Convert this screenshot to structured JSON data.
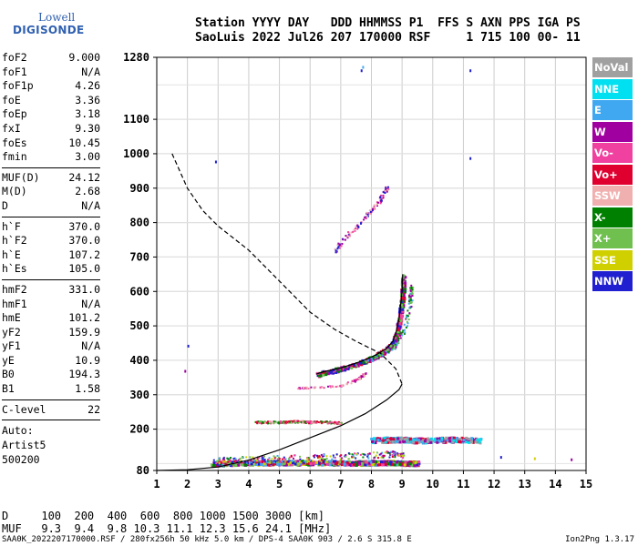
{
  "logo": {
    "line1": "Lowell",
    "line2": "DIGISONDE"
  },
  "header": {
    "line1": "Station YYYY DAY   DDD HHMMSS P1  FFS S AXN PPS IGA PS",
    "line2": "SaoLuis 2022 Jul26 207 170000 RSF     1 715 100 00- 11"
  },
  "params": [
    {
      "name": "foF2",
      "value": "9.000"
    },
    {
      "name": "foF1",
      "value": "N/A"
    },
    {
      "name": "foF1p",
      "value": "4.26"
    },
    {
      "name": "foE",
      "value": "3.36"
    },
    {
      "name": "foEp",
      "value": "3.18"
    },
    {
      "name": "fxI",
      "value": "9.30"
    },
    {
      "name": "foEs",
      "value": "10.45"
    },
    {
      "name": "fmin",
      "value": "3.00"
    },
    {
      "sep": true
    },
    {
      "name": "MUF(D)",
      "value": "24.12"
    },
    {
      "name": "M(D)",
      "value": "2.68"
    },
    {
      "name": "D",
      "value": "N/A"
    },
    {
      "sep": true
    },
    {
      "name": "h`F",
      "value": "370.0"
    },
    {
      "name": "h`F2",
      "value": "370.0"
    },
    {
      "name": "h`E",
      "value": "107.2"
    },
    {
      "name": "h`Es",
      "value": "105.0"
    },
    {
      "sep": true
    },
    {
      "name": "hmF2",
      "value": "331.0"
    },
    {
      "name": "hmF1",
      "value": "N/A"
    },
    {
      "name": "hmE",
      "value": "101.2"
    },
    {
      "name": "yF2",
      "value": "159.9"
    },
    {
      "name": "yF1",
      "value": "N/A"
    },
    {
      "name": "yE",
      "value": "10.9"
    },
    {
      "name": "B0",
      "value": "194.3"
    },
    {
      "name": "B1",
      "value": "1.58"
    },
    {
      "sep": true
    },
    {
      "name": "C-level",
      "value": "22"
    },
    {
      "sep": true
    },
    {
      "text": "Auto:"
    },
    {
      "text": "Artist5"
    },
    {
      "text": "500200"
    }
  ],
  "legend": [
    {
      "label": "NoVal",
      "color": "#a0a0a0"
    },
    {
      "label": "NNE",
      "color": "#00e0f0"
    },
    {
      "label": "E",
      "color": "#40a8f0"
    },
    {
      "label": "W",
      "color": "#a000a0"
    },
    {
      "label": "Vo-",
      "color": "#f040a0"
    },
    {
      "label": "Vo+",
      "color": "#e00030"
    },
    {
      "label": "SSW",
      "color": "#f0b0b0"
    },
    {
      "label": "X-",
      "color": "#008000"
    },
    {
      "label": "X+",
      "color": "#70c050"
    },
    {
      "label": "SSE",
      "color": "#d0d000"
    },
    {
      "label": "NNW",
      "color": "#2020d0"
    }
  ],
  "muf_table": {
    "line1": "D     100  200  400  600  800 1000 1500 3000 [km]",
    "line2": "MUF   9.3  9.4  9.8 10.3 11.1 12.3 15.6 24.1 [MHz]"
  },
  "footer": "SAA0K_2022207170000.RSF / 280fx256h 50 kHz 5.0 km / DPS-4 SAA0K 903 / 2.6 S 315.8 E",
  "version": "Ion2Png 1.3.17",
  "chart_data": {
    "type": "scatter",
    "title": "",
    "xlabel": "",
    "ylabel": "",
    "xlim": [
      1,
      15
    ],
    "ylim": [
      80,
      1280
    ],
    "x_ticks": [
      1,
      2,
      3,
      4,
      5,
      6,
      7,
      8,
      9,
      10,
      11,
      12,
      13,
      14,
      15
    ],
    "y_ticks": [
      80,
      200,
      300,
      400,
      500,
      600,
      700,
      800,
      900,
      1000,
      1100,
      1280
    ],
    "grid": true,
    "profile_solid": [
      [
        1.0,
        80
      ],
      [
        2.0,
        82
      ],
      [
        3.0,
        90
      ],
      [
        4.0,
        110
      ],
      [
        5.0,
        140
      ],
      [
        6.0,
        175
      ],
      [
        7.0,
        210
      ],
      [
        7.8,
        245
      ],
      [
        8.5,
        285
      ],
      [
        8.9,
        315
      ],
      [
        9.0,
        331
      ]
    ],
    "profile_dashed": [
      [
        1.5,
        1000
      ],
      [
        2.0,
        900
      ],
      [
        2.5,
        835
      ],
      [
        3.0,
        790
      ],
      [
        4.0,
        720
      ],
      [
        5.0,
        630
      ],
      [
        6.0,
        540
      ],
      [
        6.8,
        490
      ],
      [
        7.5,
        455
      ],
      [
        8.3,
        420
      ],
      [
        8.8,
        375
      ],
      [
        9.0,
        331
      ]
    ],
    "trace_F2_ox": [
      [
        6.2,
        360
      ],
      [
        6.5,
        368
      ],
      [
        7.0,
        378
      ],
      [
        7.5,
        392
      ],
      [
        7.9,
        405
      ],
      [
        8.2,
        418
      ],
      [
        8.5,
        435
      ],
      [
        8.7,
        455
      ],
      [
        8.8,
        480
      ],
      [
        8.9,
        520
      ],
      [
        8.95,
        560
      ],
      [
        9.0,
        600
      ],
      [
        9.02,
        650
      ]
    ],
    "trace_F2_x": [
      [
        7.8,
        400
      ],
      [
        8.1,
        410
      ],
      [
        8.4,
        425
      ],
      [
        8.7,
        440
      ],
      [
        8.9,
        465
      ],
      [
        9.1,
        500
      ],
      [
        9.2,
        540
      ],
      [
        9.25,
        580
      ],
      [
        9.3,
        620
      ]
    ],
    "trace_F1_mid": [
      [
        4.2,
        222
      ],
      [
        5.0,
        222
      ],
      [
        5.5,
        224
      ],
      [
        6.0,
        222
      ],
      [
        6.5,
        222
      ],
      [
        7.0,
        220
      ]
    ],
    "trace_F2_second": [
      [
        5.5,
        322
      ],
      [
        6.0,
        322
      ],
      [
        6.5,
        325
      ],
      [
        7.0,
        328
      ],
      [
        7.5,
        345
      ],
      [
        7.8,
        365
      ]
    ],
    "trace_multi": [
      [
        6.8,
        720
      ],
      [
        7.0,
        745
      ],
      [
        7.3,
        775
      ],
      [
        7.6,
        800
      ],
      [
        7.9,
        830
      ],
      [
        8.2,
        860
      ],
      [
        8.4,
        890
      ],
      [
        8.5,
        905
      ]
    ],
    "trace_Es_low": [
      [
        2.8,
        102
      ],
      [
        3.5,
        104
      ],
      [
        4.5,
        105
      ],
      [
        5.5,
        105
      ],
      [
        6.5,
        105
      ],
      [
        7.5,
        104
      ],
      [
        8.0,
        105
      ],
      [
        8.5,
        106
      ],
      [
        9.0,
        104
      ],
      [
        9.5,
        103
      ]
    ],
    "trace_Es_high": [
      [
        8.0,
        170
      ],
      [
        8.5,
        172
      ],
      [
        9.0,
        172
      ],
      [
        9.5,
        170
      ],
      [
        10.0,
        170
      ],
      [
        10.5,
        172
      ],
      [
        11.0,
        172
      ],
      [
        11.5,
        170
      ]
    ],
    "trace_Es_mid": [
      [
        2.8,
        110
      ],
      [
        3.5,
        112
      ],
      [
        4.5,
        115
      ],
      [
        5.5,
        118
      ],
      [
        6.5,
        120
      ],
      [
        7.5,
        125
      ],
      [
        8.5,
        130
      ],
      [
        9.0,
        128
      ]
    ],
    "isolated_points": [
      [
        7.65,
        1245
      ],
      [
        7.7,
        1255
      ],
      [
        11.2,
        1245
      ],
      [
        11.2,
        990
      ],
      [
        2.0,
        445
      ],
      [
        1.9,
        372
      ],
      [
        2.9,
        980
      ],
      [
        13.3,
        118
      ],
      [
        12.2,
        122
      ],
      [
        14.5,
        115
      ]
    ]
  }
}
